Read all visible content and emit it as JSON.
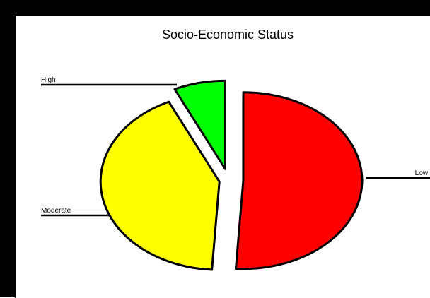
{
  "chart_data": {
    "type": "pie",
    "title": "Socio-Economic Status",
    "exploded": true,
    "legend": "none",
    "slices": [
      {
        "label": "Low",
        "value": 51,
        "color": "#ff0000"
      },
      {
        "label": "Moderate",
        "value": 42,
        "color": "#ffff00"
      },
      {
        "label": "High",
        "value": 7,
        "color": "#00ff00"
      }
    ]
  }
}
